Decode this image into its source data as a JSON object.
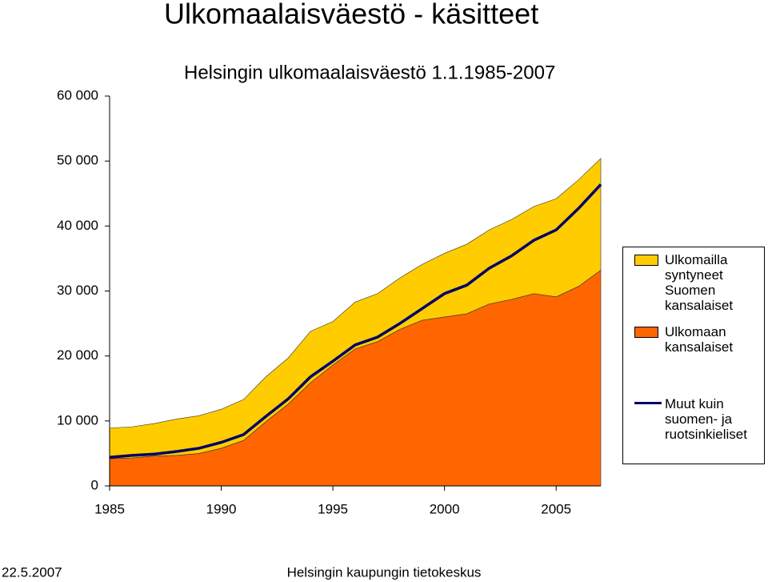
{
  "slide_title": "Ulkomaalaisväestö - käsitteet",
  "footer": {
    "date": "22.5.2007",
    "organization": "Helsingin kaupungin tietokeskus"
  },
  "chart_data": {
    "type": "area",
    "title": "Helsingin ulkomaalaisväestö 1.1.1985-2007",
    "x": [
      1985,
      1986,
      1987,
      1988,
      1989,
      1990,
      1991,
      1992,
      1993,
      1994,
      1995,
      1996,
      1997,
      1998,
      1999,
      2000,
      2001,
      2002,
      2003,
      2004,
      2005,
      2006,
      2007
    ],
    "series": [
      {
        "name": "Ulkomailla syntyneet Suomen kansalaiset",
        "color": "#ffcc00",
        "stacked": true,
        "values": [
          4700,
          4800,
          5000,
          5600,
          5800,
          6000,
          6300,
          6900,
          7100,
          7900,
          6700,
          7200,
          7400,
          7900,
          8600,
          9800,
          10700,
          11400,
          12300,
          13400,
          15100,
          16400,
          17200
        ]
      },
      {
        "name": "Ulkomaan kansalaiset",
        "color": "#ff6600",
        "stacked": true,
        "values": [
          4200,
          4300,
          4600,
          4700,
          5000,
          5800,
          7000,
          9900,
          12600,
          15900,
          18600,
          21100,
          22200,
          24100,
          25500,
          26000,
          26500,
          28000,
          28700,
          29600,
          29100,
          30700,
          33200
        ]
      },
      {
        "name": "Muut kuin suomen- ja ruotsinkieliset",
        "color": "#000066",
        "stacked": false,
        "values": [
          4400,
          4700,
          4900,
          5300,
          5800,
          6700,
          7900,
          10700,
          13400,
          16800,
          19200,
          21700,
          22900,
          25000,
          27300,
          29600,
          30900,
          33500,
          35400,
          37800,
          39400,
          42700,
          46400
        ]
      }
    ],
    "xlim": [
      1985,
      2007
    ],
    "xticks": [
      1985,
      1990,
      1995,
      2000,
      2005
    ],
    "ylim": [
      0,
      60000
    ],
    "yticks": [
      0,
      {
        "value": 10000,
        "label": "10 000"
      },
      {
        "value": 20000,
        "label": "20 000"
      },
      {
        "value": 30000,
        "label": "30 000"
      },
      {
        "value": 40000,
        "label": "40 000"
      },
      {
        "value": 50000,
        "label": "50 000"
      },
      {
        "value": 60000,
        "label": "60 000"
      }
    ],
    "grid": false,
    "legend_position": "right"
  }
}
